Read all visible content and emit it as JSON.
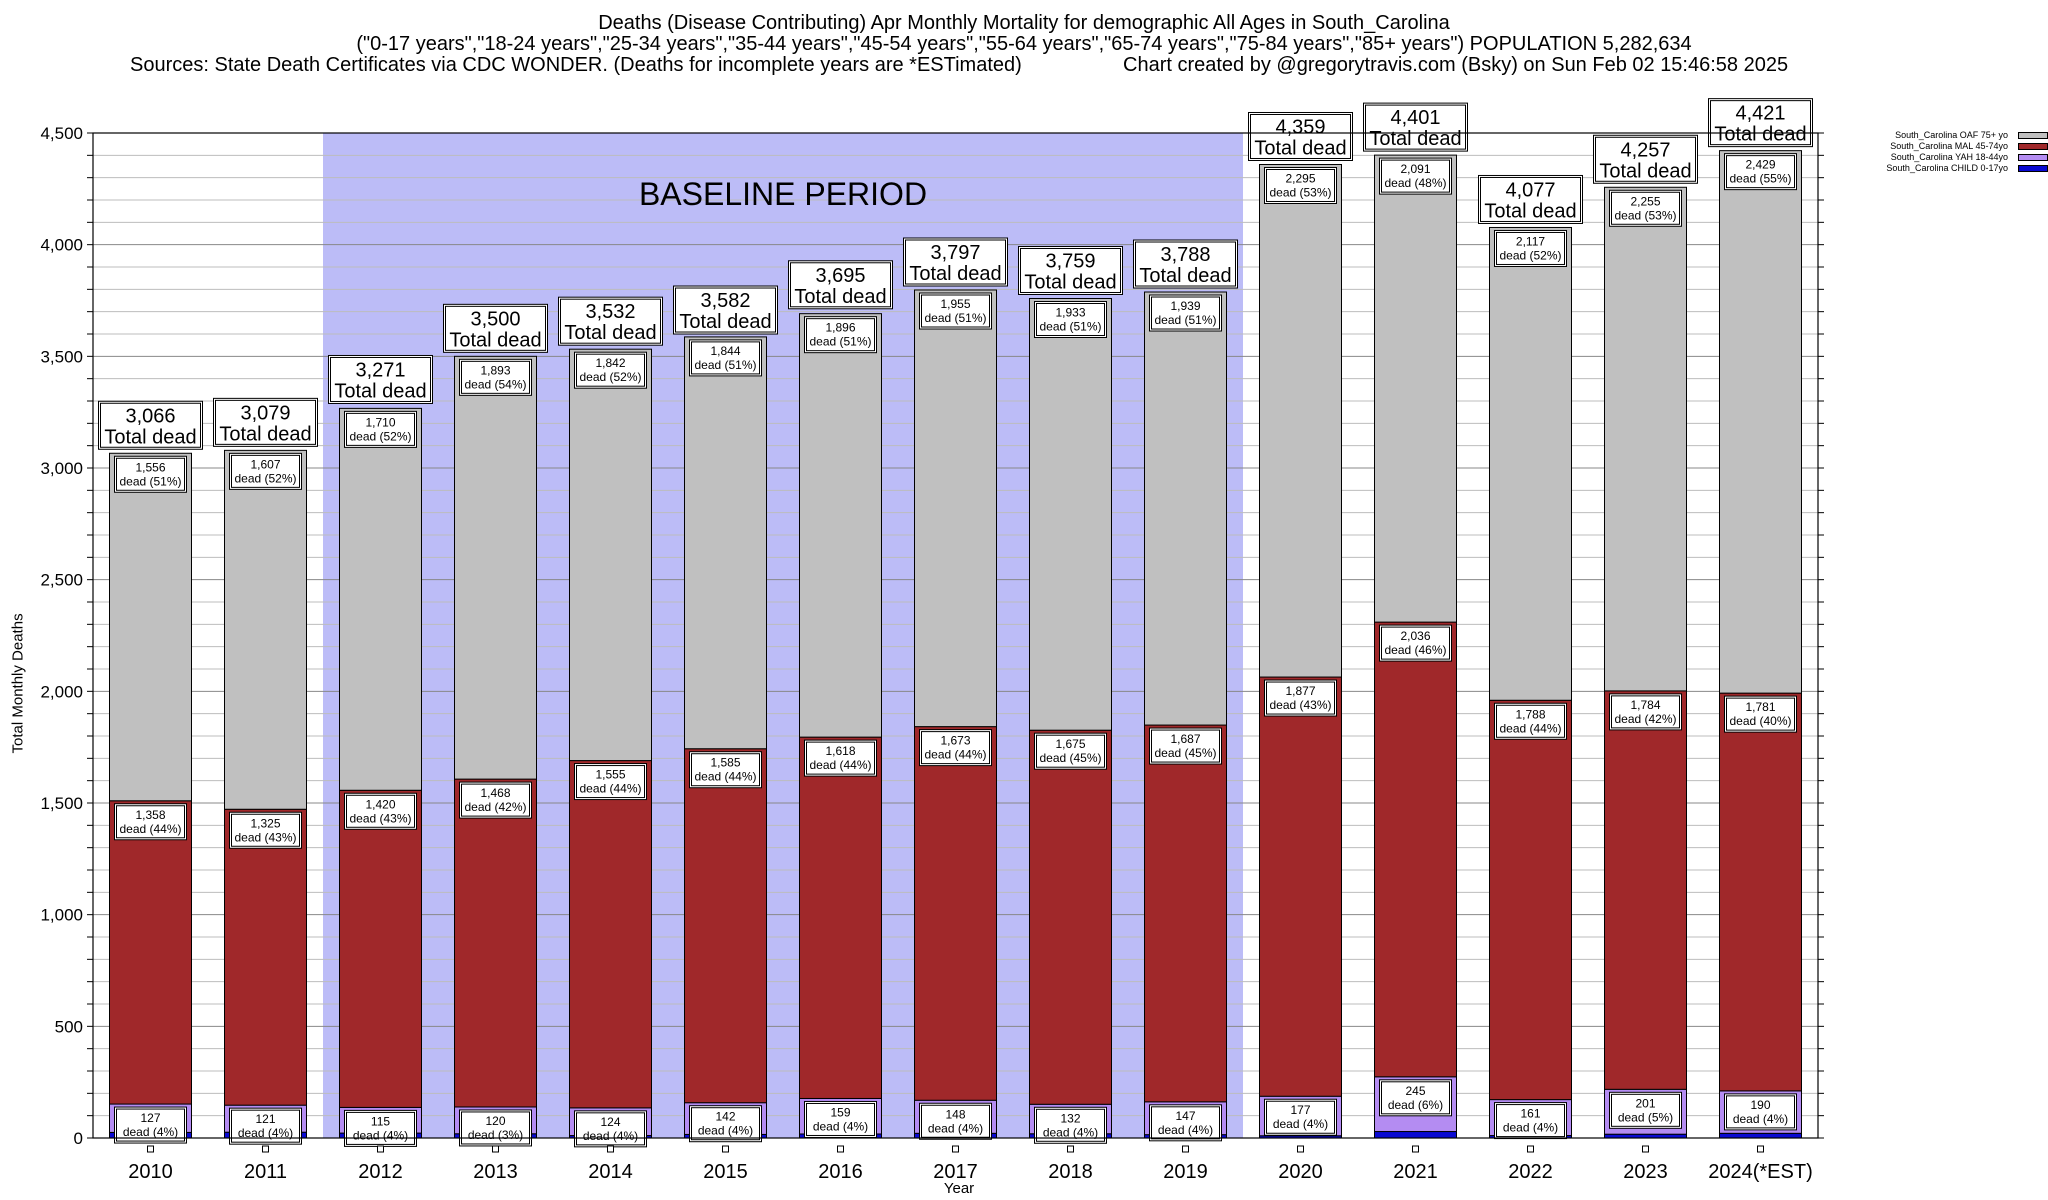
{
  "title": {
    "line1": "Deaths (Disease Contributing) Apr Monthly Mortality for demographic All Ages in South_Carolina",
    "line2": "(\"0-17 years\",\"18-24 years\",\"25-34 years\",\"35-44 years\",\"45-54 years\",\"55-64 years\",\"65-74 years\",\"75-84 years\",\"85+ years\") POPULATION 5,282,634",
    "sources": "Sources: State Death Certificates via CDC WONDER. (Deaths for incomplete years are *ESTimated)",
    "credit": "Chart created by @gregorytravis.com (Bsky) on Sun Feb 02 15:46:58 2025"
  },
  "colors": {
    "oaf": "#c0c0c0",
    "mal": "#a0282a",
    "yah": "#b48cf2",
    "child": "#0a0ad2",
    "baseline": "#bcbcf7"
  },
  "chart_data": {
    "type": "bar",
    "stacked": true,
    "xlabel": "Year",
    "ylabel": "Total Monthly Deaths",
    "ylim": [
      0,
      4500
    ],
    "yticks": [
      "0",
      "500",
      "1,000",
      "1,500",
      "2,000",
      "2,500",
      "3,000",
      "3,500",
      "4,000",
      "4,500"
    ],
    "grid": true,
    "legend_position": "top-right",
    "baseline_label": "BASELINE PERIOD",
    "baseline_range": [
      "2012",
      "2019"
    ],
    "total_label": "Total dead",
    "segment_label": "dead",
    "categories": [
      "2010",
      "2011",
      "2012",
      "2013",
      "2014",
      "2015",
      "2016",
      "2017",
      "2018",
      "2019",
      "2020",
      "2021",
      "2022",
      "2023",
      "2024(*EST)"
    ],
    "totals": [
      3066,
      3079,
      3271,
      3500,
      3532,
      3582,
      3695,
      3797,
      3759,
      3788,
      4359,
      4401,
      4077,
      4257,
      4421
    ],
    "totals_text": [
      "3,066",
      "3,079",
      "3,271",
      "3,500",
      "3,532",
      "3,582",
      "3,695",
      "3,797",
      "3,759",
      "3,788",
      "4,359",
      "4,401",
      "4,077",
      "4,257",
      "4,421"
    ],
    "series": [
      {
        "name": "South_Carolina CHILD 0-17yo",
        "color": "#0a0ad2",
        "values": [
          25,
          26,
          22,
          19,
          11,
          16,
          18,
          21,
          19,
          15,
          10,
          29,
          11,
          17,
          21
        ]
      },
      {
        "name": "South_Carolina YAH 18-44yo",
        "color": "#b48cf2",
        "values": [
          127,
          121,
          115,
          120,
          124,
          142,
          159,
          148,
          132,
          147,
          177,
          245,
          161,
          201,
          190
        ],
        "labels": [
          "127",
          "121",
          "115",
          "120",
          "124",
          "142",
          "159",
          "148",
          "132",
          "147",
          "177",
          "245",
          "161",
          "201",
          "190"
        ],
        "pct": [
          "4%",
          "4%",
          "4%",
          "3%",
          "4%",
          "4%",
          "4%",
          "4%",
          "4%",
          "4%",
          "4%",
          "6%",
          "4%",
          "5%",
          "4%"
        ]
      },
      {
        "name": "South_Carolina MAL 45-74yo",
        "color": "#a0282a",
        "values": [
          1358,
          1325,
          1420,
          1468,
          1555,
          1585,
          1618,
          1673,
          1675,
          1687,
          1877,
          2036,
          1788,
          1784,
          1781
        ],
        "labels": [
          "1,358",
          "1,325",
          "1,420",
          "1,468",
          "1,555",
          "1,585",
          "1,618",
          "1,673",
          "1,675",
          "1,687",
          "1,877",
          "2,036",
          "1,788",
          "1,784",
          "1,781"
        ],
        "pct": [
          "44%",
          "43%",
          "43%",
          "42%",
          "44%",
          "44%",
          "44%",
          "44%",
          "45%",
          "45%",
          "43%",
          "46%",
          "44%",
          "42%",
          "40%"
        ]
      },
      {
        "name": "South_Carolina OAF 75+ yo",
        "color": "#c0c0c0",
        "values": [
          1556,
          1607,
          1710,
          1893,
          1842,
          1844,
          1896,
          1955,
          1933,
          1939,
          2295,
          2091,
          2117,
          2255,
          2429
        ],
        "labels": [
          "1,556",
          "1,607",
          "1,710",
          "1,893",
          "1,842",
          "1,844",
          "1,896",
          "1,955",
          "1,933",
          "1,939",
          "2,295",
          "2,091",
          "2,117",
          "2,255",
          "2,429"
        ],
        "pct": [
          "51%",
          "52%",
          "52%",
          "54%",
          "52%",
          "51%",
          "51%",
          "51%",
          "51%",
          "51%",
          "53%",
          "48%",
          "52%",
          "53%",
          "55%"
        ]
      }
    ]
  }
}
